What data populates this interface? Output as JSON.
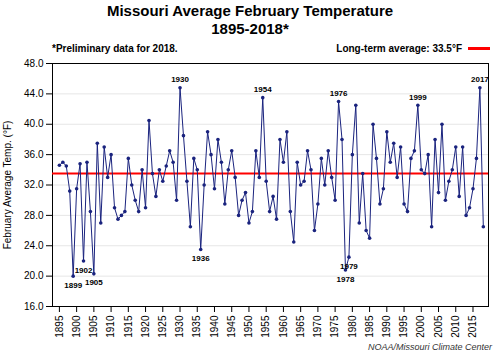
{
  "chart_data": {
    "type": "line",
    "title": "Missouri Average February Temperature",
    "subtitle": "1895-2018*",
    "note": "*Preliminary data for 2018.",
    "caption": "NOAA/Missouri Climate Center",
    "ylabel": "February Average Temp. (°F)",
    "color": "#1a237e",
    "marker": "circle",
    "grid": true,
    "x": [
      1895,
      1896,
      1897,
      1898,
      1899,
      1900,
      1901,
      1902,
      1903,
      1904,
      1905,
      1906,
      1907,
      1908,
      1909,
      1910,
      1911,
      1912,
      1913,
      1914,
      1915,
      1916,
      1917,
      1918,
      1919,
      1920,
      1921,
      1922,
      1923,
      1924,
      1925,
      1926,
      1927,
      1928,
      1929,
      1930,
      1931,
      1932,
      1933,
      1934,
      1935,
      1936,
      1937,
      1938,
      1939,
      1940,
      1941,
      1942,
      1943,
      1944,
      1945,
      1946,
      1947,
      1948,
      1949,
      1950,
      1951,
      1952,
      1953,
      1954,
      1955,
      1956,
      1957,
      1958,
      1959,
      1960,
      1961,
      1962,
      1963,
      1964,
      1965,
      1966,
      1967,
      1968,
      1969,
      1970,
      1971,
      1972,
      1973,
      1974,
      1975,
      1976,
      1977,
      1978,
      1979,
      1980,
      1981,
      1982,
      1983,
      1984,
      1985,
      1986,
      1987,
      1988,
      1989,
      1990,
      1991,
      1992,
      1993,
      1994,
      1995,
      1996,
      1997,
      1998,
      1999,
      2000,
      2001,
      2002,
      2003,
      2004,
      2005,
      2006,
      2007,
      2008,
      2009,
      2010,
      2011,
      2012,
      2013,
      2014,
      2015,
      2016,
      2017,
      2018
    ],
    "values": [
      34.6,
      35.0,
      34.5,
      31.2,
      20.0,
      31.5,
      34.8,
      22.0,
      35.0,
      28.5,
      20.3,
      37.5,
      27.0,
      37.0,
      33.0,
      36.0,
      29.0,
      27.5,
      28.0,
      28.5,
      35.5,
      32.0,
      30.0,
      28.5,
      34.0,
      29.0,
      40.5,
      33.5,
      30.5,
      34.0,
      32.5,
      34.5,
      36.5,
      35.0,
      30.0,
      44.8,
      38.5,
      32.5,
      26.5,
      35.5,
      34.0,
      23.5,
      32.0,
      39.0,
      36.0,
      31.5,
      38.0,
      35.0,
      29.5,
      34.0,
      36.5,
      33.0,
      28.0,
      30.0,
      31.0,
      27.0,
      28.5,
      36.5,
      33.0,
      43.5,
      32.5,
      28.5,
      30.5,
      27.5,
      38.0,
      35.0,
      39.0,
      28.5,
      24.5,
      35.0,
      32.0,
      32.5,
      36.5,
      34.0,
      26.0,
      29.5,
      35.5,
      32.0,
      36.5,
      33.0,
      30.0,
      43.0,
      38.0,
      20.8,
      22.5,
      36.0,
      42.5,
      27.0,
      33.5,
      26.0,
      25.0,
      40.0,
      35.5,
      29.5,
      31.5,
      39.0,
      35.0,
      37.5,
      33.0,
      37.0,
      29.5,
      28.5,
      35.5,
      36.5,
      42.5,
      34.0,
      33.5,
      36.0,
      26.5,
      38.0,
      31.0,
      40.0,
      30.0,
      32.5,
      34.0,
      37.0,
      30.5,
      37.0,
      28.0,
      29.0,
      31.5,
      35.5,
      44.8,
      26.5
    ],
    "xlim": [
      1893,
      2019.5
    ],
    "xticks": [
      1895,
      1900,
      1905,
      1910,
      1915,
      1920,
      1925,
      1930,
      1935,
      1940,
      1945,
      1950,
      1955,
      1960,
      1965,
      1970,
      1975,
      1980,
      1985,
      1990,
      1995,
      2000,
      2005,
      2010,
      2015
    ],
    "ylim": [
      16.0,
      48.0
    ],
    "yticks": [
      {
        "value": 16,
        "label": "16.0"
      },
      {
        "value": 20,
        "label": "20.0"
      },
      {
        "value": 24,
        "label": "24.0"
      },
      {
        "value": 28,
        "label": "28.0"
      },
      {
        "value": 32,
        "label": "32.0"
      },
      {
        "value": 36,
        "label": "36.0"
      },
      {
        "value": 40,
        "label": "40.0"
      },
      {
        "value": 44,
        "label": "44.0"
      },
      {
        "value": 48,
        "label": "48.0"
      }
    ],
    "reference_line": {
      "value": 33.5,
      "label": "Long-term average: 33.5°F",
      "color": "#ff0000"
    },
    "annotations": [
      {
        "x": 1899,
        "y": 20.0,
        "text": "1899"
      },
      {
        "x": 1902,
        "y": 22.0,
        "text": "1902"
      },
      {
        "x": 1905,
        "y": 20.3,
        "text": "1905"
      },
      {
        "x": 1930,
        "y": 44.8,
        "text": "1930"
      },
      {
        "x": 1936,
        "y": 23.5,
        "text": "1936"
      },
      {
        "x": 1954,
        "y": 43.5,
        "text": "1954"
      },
      {
        "x": 1976,
        "y": 43.0,
        "text": "1976"
      },
      {
        "x": 1978,
        "y": 20.8,
        "text": "1978"
      },
      {
        "x": 1979,
        "y": 22.5,
        "text": "1979"
      },
      {
        "x": 1999,
        "y": 42.5,
        "text": "1999"
      },
      {
        "x": 2017,
        "y": 44.8,
        "text": "2017"
      }
    ]
  }
}
